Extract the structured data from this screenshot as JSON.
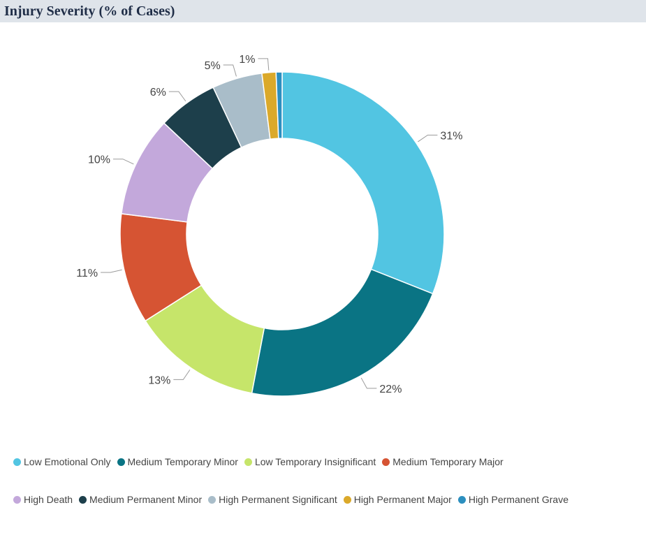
{
  "title": "Injury Severity (% of Cases)",
  "chart_data": {
    "type": "donut",
    "title": "Injury Severity (% of Cases)",
    "unit": "%",
    "slices": [
      {
        "label": "Low Emotional Only",
        "value": 31,
        "display": "31%",
        "color": "#52c5e2"
      },
      {
        "label": "Medium Temporary Minor",
        "value": 22,
        "display": "22%",
        "color": "#0a7484"
      },
      {
        "label": "Low Temporary Insignificant",
        "value": 13,
        "display": "13%",
        "color": "#c6e56a"
      },
      {
        "label": "Medium Temporary Major",
        "value": 11,
        "display": "11%",
        "color": "#d65433"
      },
      {
        "label": "High Death",
        "value": 10,
        "display": "10%",
        "color": "#c3a8db"
      },
      {
        "label": "Medium Permanent Minor",
        "value": 6,
        "display": "6%",
        "color": "#1d3f4b"
      },
      {
        "label": "High Permanent Significant",
        "value": 5,
        "display": "5%",
        "color": "#a9bdc9"
      },
      {
        "label": "High Permanent Major",
        "value": 1.4,
        "display": "1%",
        "color": "#dba92a"
      },
      {
        "label": "High Permanent Grave",
        "value": 0.6,
        "display": "",
        "color": "#2c8fbf"
      }
    ],
    "legend_position": "bottom",
    "legend_rows": [
      [
        "Low Emotional Only",
        "Medium Temporary Minor",
        "Low Temporary Insignificant",
        "Medium Temporary Major"
      ],
      [
        "High Death",
        "Medium Permanent Minor",
        "High Permanent Significant",
        "High Permanent Major",
        "High Permanent Grave"
      ]
    ]
  }
}
